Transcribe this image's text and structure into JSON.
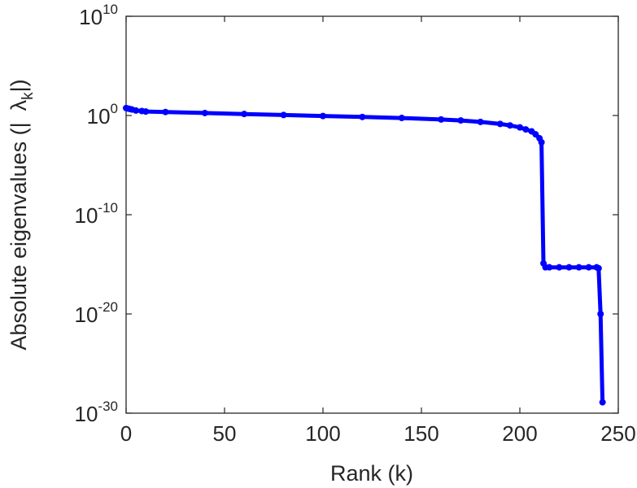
{
  "chart_data": {
    "type": "line",
    "xlabel": "Rank (k)",
    "ylabel": {
      "prefix": "Absolute eigenvalues (|",
      "symbol": "λ",
      "subscript": "k",
      "suffix": "|)"
    },
    "xlim": [
      0,
      250
    ],
    "ylim_log10": [
      -30,
      10
    ],
    "y_scale": "log",
    "grid": false,
    "legend": "none",
    "x_ticks": [
      "0",
      "50",
      "100",
      "150",
      "200",
      "250"
    ],
    "y_ticks": [
      {
        "base": "10",
        "exponent": "10"
      },
      {
        "base": "10",
        "exponent": "0"
      },
      {
        "base": "10",
        "exponent": "-10"
      },
      {
        "base": "10",
        "exponent": "-20"
      },
      {
        "base": "10",
        "exponent": "-30"
      }
    ],
    "series": [
      {
        "color": "#0000ff",
        "marker": "circle",
        "x": [
          0,
          1,
          2,
          3,
          5,
          8,
          10,
          20,
          40,
          60,
          80,
          100,
          120,
          140,
          160,
          170,
          180,
          190,
          195,
          200,
          203,
          206,
          208,
          210,
          211,
          212,
          213,
          215,
          220,
          225,
          230,
          235,
          239,
          240,
          241,
          242
        ],
        "y_log10": [
          0.75,
          0.7,
          0.65,
          0.6,
          0.5,
          0.45,
          0.4,
          0.35,
          0.25,
          0.15,
          0.05,
          -0.05,
          -0.15,
          -0.25,
          -0.4,
          -0.5,
          -0.65,
          -0.85,
          -1.0,
          -1.2,
          -1.4,
          -1.6,
          -1.9,
          -2.3,
          -2.7,
          -14.9,
          -15.3,
          -15.3,
          -15.3,
          -15.3,
          -15.3,
          -15.3,
          -15.3,
          -15.4,
          -20.0,
          -28.9
        ]
      }
    ]
  }
}
